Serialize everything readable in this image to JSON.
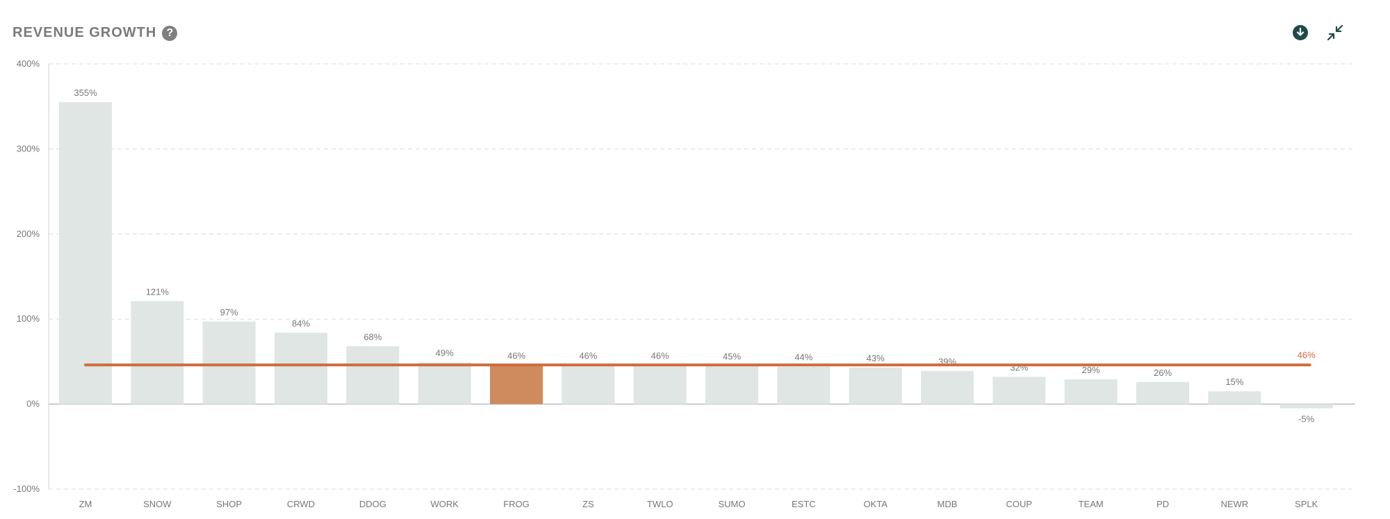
{
  "header": {
    "title": "REVENUE GROWTH",
    "help_symbol": "?"
  },
  "toolbar": {
    "download_icon": "download-circle-icon",
    "collapse_icon": "collapse-arrows-icon"
  },
  "colors": {
    "bar": "#dfe6e4",
    "highlight": "#cf8a5e",
    "average_line": "#d06a3a",
    "average_label": "#d06a3a",
    "tick_text": "#777777",
    "grid": "#dcdcdc",
    "icon": "#1f4a4a"
  },
  "chart_data": {
    "type": "bar",
    "title": "REVENUE GROWTH",
    "xlabel": "",
    "ylabel": "",
    "categories": [
      "ZM",
      "SNOW",
      "SHOP",
      "CRWD",
      "DDOG",
      "WORK",
      "FROG",
      "ZS",
      "TWLO",
      "SUMO",
      "ESTC",
      "OKTA",
      "MDB",
      "COUP",
      "TEAM",
      "PD",
      "NEWR",
      "SPLK"
    ],
    "values": [
      355,
      121,
      97,
      84,
      68,
      49,
      46,
      46,
      46,
      45,
      44,
      43,
      39,
      32,
      29,
      26,
      15,
      -5
    ],
    "value_labels": [
      "355%",
      "121%",
      "97%",
      "84%",
      "68%",
      "49%",
      "46%",
      "46%",
      "46%",
      "45%",
      "44%",
      "43%",
      "39%",
      "32%",
      "29%",
      "26%",
      "15%",
      "-5%"
    ],
    "highlight_category": "FROG",
    "average": {
      "value": 46,
      "label": "46%"
    },
    "ylim": [
      -100,
      400
    ],
    "yticks": [
      -100,
      0,
      100,
      200,
      300,
      400
    ],
    "ytick_labels": [
      "-100%",
      "0%",
      "100%",
      "200%",
      "300%",
      "400%"
    ],
    "grid": true,
    "grid_style": "dashed"
  }
}
